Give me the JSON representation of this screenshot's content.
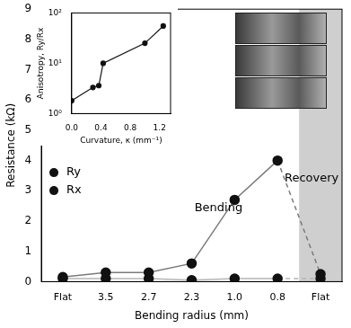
{
  "chart_data": [
    {
      "type": "line",
      "x_label": "Bending radius (mm)",
      "y_label": "Resistance (kΩ)",
      "categories": [
        "Flat",
        "3.5",
        "2.7",
        "2.3",
        "1.0",
        "0.8",
        "Flat"
      ],
      "series": [
        {
          "name": "Ry",
          "color": "#111111",
          "marker": "circle",
          "line_style": "solid",
          "values": [
            0.15,
            0.3,
            0.3,
            0.6,
            2.7,
            4.0,
            0.25
          ]
        },
        {
          "name": "Rx",
          "color": "#111111",
          "marker": "circle",
          "line_style": "solid",
          "values": [
            0.1,
            0.1,
            0.1,
            0.05,
            0.1,
            0.1,
            0.1
          ]
        }
      ],
      "ylim": [
        0,
        9
      ],
      "yticks": [
        0,
        1,
        2,
        3,
        4,
        5,
        6,
        7,
        8,
        9
      ],
      "grid": false,
      "legend": "left",
      "annotations": [
        "Bending",
        "Recovery"
      ]
    },
    {
      "type": "scatter",
      "x_label": "Curvature, κ (mm⁻¹)",
      "y_label": "Anisotropy, Ry/Rx",
      "x": [
        0,
        0.29,
        0.37,
        0.43,
        1.0,
        1.25
      ],
      "values": [
        1.8,
        3.3,
        3.6,
        10,
        25,
        55
      ],
      "color": "#111111",
      "marker": "circle",
      "line_style": "solid",
      "log": "y",
      "xlim": [
        0,
        1.35
      ],
      "xticks": [
        {
          "value": 0,
          "label": "0.0"
        },
        {
          "value": 0.4,
          "label": "0.4"
        },
        {
          "value": 0.8,
          "label": "0.8"
        },
        {
          "value": 1.2,
          "label": "1.2"
        }
      ],
      "ylim": [
        1,
        100
      ],
      "yticks": [
        {
          "value": 1,
          "label": "10⁰"
        },
        {
          "value": 10,
          "label": "10¹"
        },
        {
          "value": 100,
          "label": "10²"
        }
      ],
      "grid": false
    }
  ]
}
